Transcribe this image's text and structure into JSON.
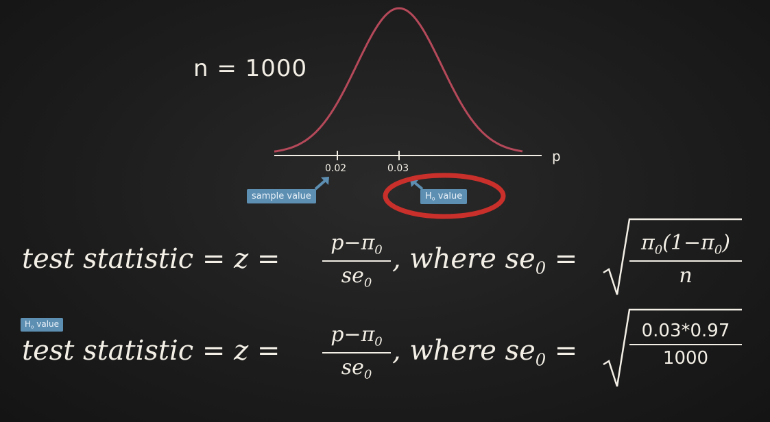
{
  "diagram": {
    "n_label": "n = 1000",
    "axis": {
      "label": "p",
      "ticks": [
        "0.02",
        "0.03"
      ]
    },
    "sample_tag": "sample value",
    "h0_tag_main": "H",
    "h0_tag_sub": "o",
    "h0_tag_rest": " value"
  },
  "formula1": {
    "lhs": "test statistic = z = ",
    "num": "p−π",
    "num_sub": "0",
    "den": "se",
    "den_sub": "0",
    "mid": ", where se",
    "mid_sub": "0",
    "eq": " = ",
    "sqrt_num": "π",
    "sqrt_num_sub1": "0",
    "sqrt_num_mid": "(1−π",
    "sqrt_num_sub2": "0",
    "sqrt_num_end": ")",
    "sqrt_den": "n"
  },
  "formula2": {
    "tag_main": "H",
    "tag_sub": "o",
    "tag_rest": " value",
    "lhs": "test statistic = z = ",
    "num": "p−π",
    "num_sub": "0",
    "den": "se",
    "den_sub": "0",
    "mid": ", where se",
    "mid_sub": "0",
    "eq": " = ",
    "sqrt_num": "0.03*0.97",
    "sqrt_den": "1000"
  }
}
